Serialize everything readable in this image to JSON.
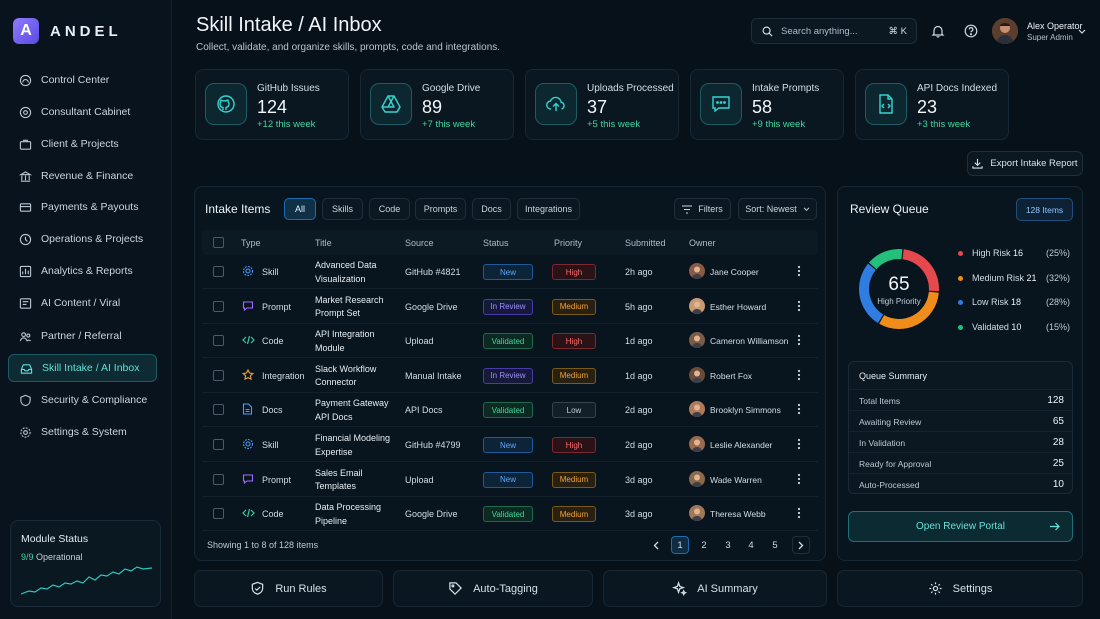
{
  "brand": {
    "logo_letter": "A",
    "name": "ANDEL"
  },
  "sidebar": {
    "items": [
      {
        "label": "Control Center",
        "icon": "control-center-icon"
      },
      {
        "label": "Consultant Cabinet",
        "icon": "cabinet-icon"
      },
      {
        "label": "Client & Projects",
        "icon": "briefcase-icon"
      },
      {
        "label": "Revenue & Finance",
        "icon": "bank-icon"
      },
      {
        "label": "Payments & Payouts",
        "icon": "card-icon"
      },
      {
        "label": "Operations & Projects",
        "icon": "operations-icon"
      },
      {
        "label": "Analytics & Reports",
        "icon": "chart-icon"
      },
      {
        "label": "AI Content / Viral",
        "icon": "ai-content-icon"
      },
      {
        "label": "Partner / Referral",
        "icon": "partner-icon"
      },
      {
        "label": "Skill Intake / AI Inbox",
        "icon": "inbox-icon",
        "active": true
      },
      {
        "label": "Security & Compliance",
        "icon": "shield-icon"
      },
      {
        "label": "Settings & System",
        "icon": "gear-icon"
      }
    ],
    "module_status": {
      "title": "Module Status",
      "count": "9/9",
      "label": "Operational"
    }
  },
  "header": {
    "title": "Skill Intake / AI Inbox",
    "subtitle": "Collect, validate, and organize skills, prompts, code and integrations.",
    "search_placeholder": "Search anything...",
    "search_shortcut": "⌘ K",
    "user": {
      "name": "Alex Operator",
      "role": "Super Admin"
    }
  },
  "stats": [
    {
      "label": "GitHub Issues",
      "value": "124",
      "delta": "+12 this week",
      "icon": "github-icon"
    },
    {
      "label": "Google Drive",
      "value": "89",
      "delta": "+7 this week",
      "icon": "drive-icon"
    },
    {
      "label": "Uploads Processed",
      "value": "37",
      "delta": "+5 this week",
      "icon": "cloud-upload-icon"
    },
    {
      "label": "Intake Prompts",
      "value": "58",
      "delta": "+9 this week",
      "icon": "chat-icon"
    },
    {
      "label": "API Docs Indexed",
      "value": "23",
      "delta": "+3 this week",
      "icon": "api-doc-icon"
    }
  ],
  "export_label": "Export Intake Report",
  "intake": {
    "title": "Intake Items",
    "filters": [
      "All",
      "Skills",
      "Code",
      "Prompts",
      "Docs",
      "Integrations"
    ],
    "filters_button": "Filters",
    "sort_label": "Sort: Newest",
    "columns": [
      "Type",
      "Title",
      "Source",
      "Status",
      "Priority",
      "Submitted",
      "Owner"
    ],
    "rows": [
      {
        "type": "Skill",
        "title1": "Advanced Data",
        "title2": "Visualization",
        "source": "GitHub #4821",
        "status": "New",
        "priority": "High",
        "submitted": "2h ago",
        "owner": "Jane Cooper"
      },
      {
        "type": "Prompt",
        "title1": "Market Research",
        "title2": "Prompt Set",
        "source": "Google Drive",
        "status": "In Review",
        "priority": "Medium",
        "submitted": "5h ago",
        "owner": "Esther Howard"
      },
      {
        "type": "Code",
        "title1": "API Integration",
        "title2": "Module",
        "source": "Upload",
        "status": "Validated",
        "priority": "High",
        "submitted": "1d ago",
        "owner": "Cameron Williamson"
      },
      {
        "type": "Integration",
        "title1": "Slack Workflow",
        "title2": "Connector",
        "source": "Manual Intake",
        "status": "In Review",
        "priority": "Medium",
        "submitted": "1d ago",
        "owner": "Robert Fox"
      },
      {
        "type": "Docs",
        "title1": "Payment Gateway",
        "title2": "API Docs",
        "source": "API Docs",
        "status": "Validated",
        "priority": "Low",
        "submitted": "2d ago",
        "owner": "Brooklyn Simmons"
      },
      {
        "type": "Skill",
        "title1": "Financial Modeling",
        "title2": "Expertise",
        "source": "GitHub #4799",
        "status": "New",
        "priority": "High",
        "submitted": "2d ago",
        "owner": "Leslie Alexander"
      },
      {
        "type": "Prompt",
        "title1": "Sales Email",
        "title2": "Templates",
        "source": "Upload",
        "status": "New",
        "priority": "Medium",
        "submitted": "3d ago",
        "owner": "Wade Warren"
      },
      {
        "type": "Code",
        "title1": "Data Processing",
        "title2": "Pipeline",
        "source": "Google Drive",
        "status": "Validated",
        "priority": "Medium",
        "submitted": "3d ago",
        "owner": "Theresa Webb"
      }
    ],
    "footer": "Showing 1 to 8 of 128 items",
    "pages": [
      "1",
      "2",
      "3",
      "4",
      "5"
    ]
  },
  "review": {
    "title": "Review Queue",
    "count_badge": "128 Items",
    "donut_value": "65",
    "donut_label": "High Priority",
    "legend": [
      {
        "label": "High Risk",
        "value": 16,
        "pct": "(25%)",
        "color": "#e5484d"
      },
      {
        "label": "Medium Risk",
        "value": 21,
        "pct": "(32%)",
        "color": "#f08c1a"
      },
      {
        "label": "Low Risk",
        "value": 18,
        "pct": "(28%)",
        "color": "#2f7de1"
      },
      {
        "label": "Validated",
        "value": 10,
        "pct": "(15%)",
        "color": "#22c07a"
      }
    ],
    "summary_title": "Queue Summary",
    "summary": [
      {
        "k": "Total Items",
        "v": "128"
      },
      {
        "k": "Awaiting Review",
        "v": "65"
      },
      {
        "k": "In Validation",
        "v": "28"
      },
      {
        "k": "Ready for Approval",
        "v": "25"
      },
      {
        "k": "Auto-Processed",
        "v": "10"
      }
    ],
    "portal_label": "Open Review Portal"
  },
  "actions": [
    {
      "label": "Run Rules",
      "icon": "shield-check-icon"
    },
    {
      "label": "Auto-Tagging",
      "icon": "tag-icon"
    },
    {
      "label": "AI Summary",
      "icon": "sparkle-icon"
    },
    {
      "label": "Settings",
      "icon": "gear-icon"
    }
  ]
}
